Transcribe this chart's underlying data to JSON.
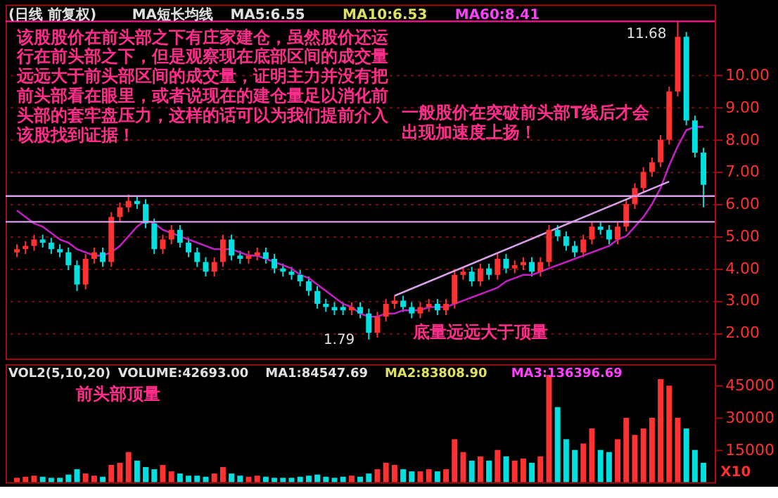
{
  "chart_data": [
    {
      "type": "candlestick",
      "tick_labels": "y",
      "grid": "y",
      "legend": false,
      "categories": [
        null,
        null,
        null,
        null,
        null,
        null,
        null,
        null,
        null,
        null,
        null,
        null,
        null,
        null,
        null,
        null,
        null,
        null,
        null,
        null,
        null,
        null,
        null,
        null,
        null,
        null,
        null,
        null,
        null,
        null,
        null,
        null,
        null,
        null,
        null,
        null,
        null,
        null,
        null,
        null,
        null,
        null,
        null,
        null,
        null,
        null,
        null,
        null,
        null,
        null,
        null,
        null,
        null,
        null,
        null,
        null,
        null,
        null,
        null,
        null,
        null,
        null,
        null,
        null,
        null,
        null,
        null,
        null,
        null,
        null,
        null,
        null,
        null,
        null,
        null,
        null,
        null,
        null,
        null,
        null,
        null
      ],
      "ohlc": [
        [
          4.5,
          4.75,
          4.35,
          4.6
        ],
        [
          4.6,
          4.85,
          4.45,
          4.7
        ],
        [
          4.7,
          5.05,
          4.55,
          4.9
        ],
        [
          4.9,
          5.05,
          4.65,
          4.8
        ],
        [
          4.8,
          4.95,
          4.45,
          4.6
        ],
        [
          4.6,
          4.75,
          4.35,
          4.5
        ],
        [
          4.5,
          4.65,
          3.95,
          4.1
        ],
        [
          4.1,
          4.25,
          3.3,
          3.5
        ],
        [
          3.5,
          4.45,
          3.35,
          4.3
        ],
        [
          4.3,
          4.65,
          4.15,
          4.5
        ],
        [
          4.5,
          4.65,
          4.05,
          4.2
        ],
        [
          4.2,
          5.75,
          4.05,
          5.6
        ],
        [
          5.6,
          6.05,
          5.45,
          5.9
        ],
        [
          5.9,
          6.3,
          5.75,
          6.1
        ],
        [
          6.1,
          6.25,
          5.85,
          6.0
        ],
        [
          6.0,
          6.15,
          5.25,
          5.4
        ],
        [
          5.4,
          5.55,
          4.45,
          4.6
        ],
        [
          4.6,
          5.05,
          4.45,
          4.9
        ],
        [
          4.9,
          5.35,
          4.75,
          5.2
        ],
        [
          5.2,
          5.35,
          4.65,
          4.8
        ],
        [
          4.8,
          4.95,
          4.35,
          4.5
        ],
        [
          4.5,
          4.65,
          4.05,
          4.2
        ],
        [
          4.2,
          4.35,
          3.75,
          3.9
        ],
        [
          3.9,
          4.35,
          3.75,
          4.2
        ],
        [
          4.2,
          5.05,
          4.05,
          4.9
        ],
        [
          4.9,
          5.05,
          4.25,
          4.4
        ],
        [
          4.4,
          4.55,
          4.15,
          4.3
        ],
        [
          4.3,
          4.55,
          4.15,
          4.4
        ],
        [
          4.4,
          4.65,
          4.25,
          4.5
        ],
        [
          4.5,
          4.65,
          4.15,
          4.3
        ],
        [
          4.3,
          4.45,
          3.85,
          4.0
        ],
        [
          4.0,
          4.15,
          3.75,
          3.9
        ],
        [
          3.9,
          4.05,
          3.65,
          3.8
        ],
        [
          3.8,
          3.95,
          3.45,
          3.6
        ],
        [
          3.6,
          3.75,
          3.15,
          3.3
        ],
        [
          3.3,
          3.45,
          2.75,
          2.9
        ],
        [
          2.9,
          3.05,
          2.65,
          2.8
        ],
        [
          2.8,
          2.95,
          2.55,
          2.7
        ],
        [
          2.8,
          2.95,
          2.55,
          2.7
        ],
        [
          2.7,
          2.95,
          2.55,
          2.8
        ],
        [
          2.8,
          2.95,
          2.45,
          2.6
        ],
        [
          2.6,
          2.75,
          1.79,
          2.0
        ],
        [
          2.0,
          2.65,
          1.85,
          2.5
        ],
        [
          2.5,
          3.05,
          2.35,
          2.9
        ],
        [
          2.9,
          3.15,
          2.75,
          3.0
        ],
        [
          3.0,
          3.15,
          2.65,
          2.8
        ],
        [
          2.8,
          2.95,
          2.45,
          2.6
        ],
        [
          2.6,
          2.95,
          2.45,
          2.8
        ],
        [
          2.8,
          3.05,
          2.65,
          2.9
        ],
        [
          2.9,
          3.05,
          2.55,
          2.7
        ],
        [
          2.7,
          3.05,
          2.55,
          2.9
        ],
        [
          2.9,
          3.95,
          2.75,
          3.8
        ],
        [
          3.8,
          4.05,
          3.65,
          3.9
        ],
        [
          3.9,
          4.05,
          3.45,
          3.6
        ],
        [
          3.6,
          4.15,
          3.45,
          4.0
        ],
        [
          4.0,
          4.15,
          3.65,
          3.8
        ],
        [
          3.8,
          4.45,
          3.65,
          4.3
        ],
        [
          4.3,
          4.45,
          3.85,
          4.0
        ],
        [
          4.0,
          4.25,
          3.85,
          4.1
        ],
        [
          4.1,
          4.35,
          3.95,
          4.2
        ],
        [
          4.2,
          4.35,
          3.75,
          3.9
        ],
        [
          3.9,
          4.35,
          3.75,
          4.2
        ],
        [
          4.2,
          5.35,
          4.05,
          5.2
        ],
        [
          5.2,
          5.35,
          4.85,
          5.0
        ],
        [
          5.0,
          5.15,
          4.55,
          4.7
        ],
        [
          4.7,
          4.85,
          4.35,
          4.5
        ],
        [
          4.5,
          5.05,
          4.35,
          4.9
        ],
        [
          4.9,
          5.45,
          4.75,
          5.3
        ],
        [
          5.3,
          5.45,
          5.05,
          5.2
        ],
        [
          5.2,
          5.35,
          4.75,
          4.9
        ],
        [
          4.9,
          5.45,
          4.75,
          5.3
        ],
        [
          5.3,
          6.15,
          5.15,
          6.0
        ],
        [
          6.0,
          6.65,
          5.85,
          6.5
        ],
        [
          6.5,
          7.15,
          6.35,
          7.0
        ],
        [
          7.0,
          7.45,
          6.85,
          7.3
        ],
        [
          7.3,
          8.15,
          7.15,
          8.0
        ],
        [
          8.0,
          9.65,
          7.85,
          9.5
        ],
        [
          9.5,
          11.68,
          9.35,
          11.2
        ],
        [
          11.2,
          11.35,
          8.45,
          8.6
        ],
        [
          8.6,
          8.75,
          7.45,
          7.6
        ],
        [
          7.6,
          7.75,
          5.9,
          6.6
        ]
      ],
      "colors": [
        "#ff3232",
        "#ff3232",
        "#ff3232",
        "#00e0e0",
        "#00e0e0",
        "#00e0e0",
        "#00e0e0",
        "#00e0e0",
        "#ff3232",
        "#ff3232",
        "#00e0e0",
        "#ff3232",
        "#ff3232",
        "#ff3232",
        "#00e0e0",
        "#00e0e0",
        "#00e0e0",
        "#ff3232",
        "#ff3232",
        "#00e0e0",
        "#00e0e0",
        "#00e0e0",
        "#00e0e0",
        "#ff3232",
        "#ff3232",
        "#00e0e0",
        "#00e0e0",
        "#ff3232",
        "#ff3232",
        "#00e0e0",
        "#00e0e0",
        "#00e0e0",
        "#00e0e0",
        "#00e0e0",
        "#00e0e0",
        "#00e0e0",
        "#00e0e0",
        "#00e0e0",
        "#00e0e0",
        "#ff3232",
        "#00e0e0",
        "#00e0e0",
        "#ff3232",
        "#ff3232",
        "#ff3232",
        "#00e0e0",
        "#00e0e0",
        "#ff3232",
        "#ff3232",
        "#00e0e0",
        "#ff3232",
        "#ff3232",
        "#ff3232",
        "#00e0e0",
        "#ff3232",
        "#00e0e0",
        "#ff3232",
        "#00e0e0",
        "#ff3232",
        "#ff3232",
        "#00e0e0",
        "#ff3232",
        "#ff3232",
        "#00e0e0",
        "#00e0e0",
        "#00e0e0",
        "#ff3232",
        "#ff3232",
        "#00e0e0",
        "#00e0e0",
        "#ff3232",
        "#ff3232",
        "#ff3232",
        "#ff3232",
        "#ff3232",
        "#ff3232",
        "#ff3232",
        "#ff3232",
        "#00e0e0",
        "#00e0e0",
        "#00e0e0"
      ],
      "series": [
        {
          "type": "line",
          "color": "#c020c0",
          "values": [
            5.8,
            5.6,
            5.4,
            5.3,
            5.1,
            4.9,
            4.8,
            4.6,
            4.5,
            4.4,
            4.4,
            4.5,
            4.7,
            5.0,
            5.3,
            5.5,
            5.4,
            5.2,
            5.1,
            5.0,
            4.9,
            4.8,
            4.7,
            4.6,
            4.6,
            4.6,
            4.5,
            4.4,
            4.4,
            4.3,
            4.2,
            4.1,
            4.0,
            3.8,
            3.7,
            3.5,
            3.3,
            3.1,
            2.9,
            2.8,
            2.6,
            2.5,
            2.5,
            2.6,
            2.6,
            2.7,
            2.7,
            2.7,
            2.8,
            2.8,
            2.8,
            2.9,
            3.0,
            3.1,
            3.2,
            3.3,
            3.4,
            3.6,
            3.7,
            3.8,
            3.8,
            3.9,
            4.0,
            4.1,
            4.2,
            4.3,
            4.4,
            4.5,
            4.6,
            4.7,
            4.9,
            5.0,
            5.3,
            5.6,
            6.0,
            6.5,
            7.2,
            7.8,
            8.3,
            8.4,
            8.4
          ]
        },
        {
          "type": "line",
          "color": "#d8a0e8",
          "values": [
            null,
            null,
            null,
            null,
            null,
            null,
            null,
            null,
            null,
            null,
            null,
            null,
            null,
            null,
            null,
            null,
            null,
            null,
            null,
            null,
            null,
            null,
            null,
            null,
            null,
            null,
            null,
            null,
            null,
            null,
            null,
            null,
            null,
            null,
            null,
            null,
            null,
            null,
            null,
            null,
            null,
            null,
            null,
            null,
            3.15,
            null,
            null,
            null,
            null,
            null,
            null,
            null,
            null,
            null,
            null,
            null,
            null,
            null,
            null,
            null,
            null,
            null,
            null,
            null,
            null,
            null,
            null,
            null,
            null,
            null,
            null,
            null,
            null,
            null,
            null,
            null,
            6.7,
            null,
            null,
            null,
            null
          ]
        }
      ],
      "ylim": [
        1.2,
        12.2
      ],
      "yticks": [
        {
          "value": 2,
          "label": "2.00"
        },
        {
          "value": 3,
          "label": "3.00"
        },
        {
          "value": 4,
          "label": "4.00"
        },
        {
          "value": 5,
          "label": "5.00"
        },
        {
          "value": 6,
          "label": "6.00"
        },
        {
          "value": 7,
          "label": "7.00"
        },
        {
          "value": 8,
          "label": "8.00"
        },
        {
          "value": 9,
          "label": "9.00"
        },
        {
          "value": 10,
          "label": "10.00"
        }
      ],
      "ref_lines": [
        {
          "axis": "y",
          "value": 6.25,
          "color": "#d8a0e8"
        },
        {
          "axis": "y",
          "value": 5.45,
          "color": "#d8a0e8"
        },
        {
          "axis": "y",
          "value": 11.68,
          "color": "#ff1493"
        }
      ],
      "annotations": [
        "(日线 前复权)",
        "MA短长均线",
        "MA5:6.55",
        "MA10:6.53",
        "MA60:8.41",
        "该股股价在前头部之下有庄家建仓，虽然股价还运行在前头部之下，但是观察现在底部区间的成交量远远大于前头部区间的成交量，证明主力并没有把前头部看在眼里，或者说现在的建仓量足以消化前头部的套牢盘压力，这样的话可以为我们提前介入该股找到证据！",
        "一般股价在突破前头部T线后才会出现加速度上扬！",
        "底量远远大于顶量",
        "1.79",
        {
          "text": "11.68",
          "y": 11.68
        }
      ]
    },
    {
      "type": "bar",
      "tick_labels": "y",
      "legend": false,
      "categories": [
        null,
        null,
        null,
        null,
        null,
        null,
        null,
        null,
        null,
        null,
        null,
        null,
        null,
        null,
        null,
        null,
        null,
        null,
        null,
        null,
        null,
        null,
        null,
        null,
        null,
        null,
        null,
        null,
        null,
        null,
        null,
        null,
        null,
        null,
        null,
        null,
        null,
        null,
        null,
        null,
        null,
        null,
        null,
        null,
        null,
        null,
        null,
        null,
        null,
        null,
        null,
        null,
        null,
        null,
        null,
        null,
        null,
        null,
        null,
        null,
        null,
        null,
        null,
        null,
        null,
        null,
        null,
        null,
        null,
        null,
        null,
        null,
        null,
        null,
        null,
        null,
        null,
        null,
        null,
        null,
        null
      ],
      "values": [
        2000,
        2500,
        3000,
        2500,
        2000,
        2000,
        3500,
        6000,
        4000,
        3000,
        2500,
        8000,
        9000,
        14000,
        10000,
        7000,
        6000,
        8000,
        5000,
        4000,
        3000,
        3000,
        2500,
        4000,
        7000,
        4000,
        3000,
        2500,
        3000,
        2500,
        2000,
        2000,
        2000,
        2500,
        3000,
        3500,
        2500,
        2000,
        2500,
        3000,
        2500,
        4000,
        6000,
        9000,
        8000,
        6000,
        5000,
        5000,
        6000,
        5000,
        6000,
        20000,
        14000,
        10000,
        12000,
        10000,
        15000,
        12000,
        10000,
        11000,
        9000,
        12000,
        50000,
        35000,
        20000,
        15000,
        18000,
        25000,
        15000,
        14000,
        20000,
        30000,
        22000,
        25000,
        30000,
        48000,
        45000,
        30000,
        25000,
        15000,
        9000
      ],
      "colors": [
        "#ff3232",
        "#ff3232",
        "#ff3232",
        "#00e0e0",
        "#00e0e0",
        "#00e0e0",
        "#00e0e0",
        "#00e0e0",
        "#ff3232",
        "#ff3232",
        "#00e0e0",
        "#ff3232",
        "#ff3232",
        "#ff3232",
        "#00e0e0",
        "#00e0e0",
        "#00e0e0",
        "#ff3232",
        "#ff3232",
        "#00e0e0",
        "#00e0e0",
        "#00e0e0",
        "#00e0e0",
        "#ff3232",
        "#ff3232",
        "#00e0e0",
        "#00e0e0",
        "#ff3232",
        "#ff3232",
        "#00e0e0",
        "#00e0e0",
        "#00e0e0",
        "#00e0e0",
        "#00e0e0",
        "#00e0e0",
        "#00e0e0",
        "#00e0e0",
        "#00e0e0",
        "#00e0e0",
        "#ff3232",
        "#00e0e0",
        "#00e0e0",
        "#ff3232",
        "#ff3232",
        "#ff3232",
        "#00e0e0",
        "#00e0e0",
        "#ff3232",
        "#ff3232",
        "#00e0e0",
        "#ff3232",
        "#ff3232",
        "#ff3232",
        "#00e0e0",
        "#ff3232",
        "#00e0e0",
        "#ff3232",
        "#00e0e0",
        "#ff3232",
        "#ff3232",
        "#00e0e0",
        "#ff3232",
        "#ff3232",
        "#00e0e0",
        "#00e0e0",
        "#00e0e0",
        "#ff3232",
        "#ff3232",
        "#00e0e0",
        "#00e0e0",
        "#ff3232",
        "#ff3232",
        "#ff3232",
        "#ff3232",
        "#ff3232",
        "#ff3232",
        "#ff3232",
        "#ff3232",
        "#00e0e0",
        "#00e0e0",
        "#00e0e0"
      ],
      "ylim": [
        0,
        55000
      ],
      "yticks": [
        15000,
        30000,
        45000
      ],
      "annotations": [
        "VOL2(5,10,20)",
        "VOLUME:42693.00",
        "MA1:84547.69",
        "MA2:83808.90",
        "MA3:136396.69",
        "前头部顶量",
        "X10"
      ]
    }
  ]
}
